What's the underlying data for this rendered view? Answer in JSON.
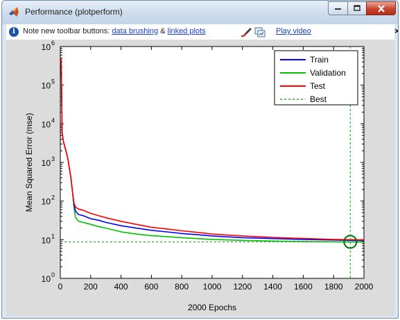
{
  "window": {
    "title": "Performance (plotperform)"
  },
  "infobar": {
    "prefix": "Note new toolbar buttons:",
    "link1": "data brushing",
    "amp": "&",
    "link2": "linked plots",
    "play_link": "Play video",
    "close_glyph": "×",
    "icons": [
      "info-icon",
      "brush-icon",
      "linked-plots-icon"
    ]
  },
  "chart_data": {
    "type": "line",
    "title": "",
    "xlabel": "2000 Epochs",
    "ylabel": "Mean Squared Error  (mse)",
    "xlim": [
      0,
      2000
    ],
    "ylim": [
      1,
      1000000
    ],
    "yscale": "log",
    "x_ticks": [
      0,
      200,
      400,
      600,
      800,
      1000,
      1200,
      1400,
      1600,
      1800,
      2000
    ],
    "y_ticks": [
      {
        "value": 1,
        "base": "10",
        "exp": "0"
      },
      {
        "value": 10,
        "base": "10",
        "exp": "1"
      },
      {
        "value": 100,
        "base": "10",
        "exp": "2"
      },
      {
        "value": 1000,
        "base": "10",
        "exp": "3"
      },
      {
        "value": 10000,
        "base": "10",
        "exp": "4"
      },
      {
        "value": 100000,
        "base": "10",
        "exp": "5"
      },
      {
        "value": 1000000,
        "base": "10",
        "exp": "6"
      }
    ],
    "grid": false,
    "legend_position": "top-right",
    "series": [
      {
        "name": "Train",
        "color": "#0000ff",
        "style": "solid",
        "x": [
          0,
          5,
          8,
          12,
          20,
          30,
          40,
          50,
          60,
          70,
          80,
          90,
          100,
          120,
          150,
          200,
          250,
          300,
          400,
          500,
          600,
          700,
          800,
          900,
          1000,
          1200,
          1400,
          1600,
          1800,
          2000
        ],
        "y": [
          500000,
          500000,
          100000,
          6000,
          3500,
          2500,
          1800,
          1200,
          700,
          400,
          180,
          80,
          55,
          45,
          42,
          35,
          32,
          28,
          23,
          20,
          17.5,
          16,
          14.5,
          13.5,
          12.5,
          11.3,
          10.7,
          10.2,
          9.8,
          9.5
        ]
      },
      {
        "name": "Validation",
        "color": "#00c000",
        "style": "solid",
        "x": [
          0,
          5,
          8,
          12,
          20,
          30,
          40,
          50,
          60,
          70,
          80,
          90,
          100,
          120,
          150,
          200,
          250,
          300,
          400,
          500,
          600,
          700,
          800,
          900,
          1000,
          1200,
          1400,
          1600,
          1800,
          2000
        ],
        "y": [
          500000,
          500000,
          100000,
          6000,
          3500,
          2500,
          1800,
          1200,
          700,
          400,
          180,
          70,
          38,
          30,
          28,
          25,
          22,
          20,
          16,
          14,
          12.8,
          12,
          11.3,
          10.7,
          10.2,
          9.6,
          9.2,
          9.0,
          8.8,
          8.7
        ]
      },
      {
        "name": "Test",
        "color": "#ff0000",
        "style": "solid",
        "x": [
          0,
          5,
          8,
          12,
          20,
          30,
          40,
          50,
          60,
          70,
          80,
          90,
          100,
          120,
          150,
          200,
          250,
          300,
          400,
          500,
          600,
          700,
          800,
          900,
          1000,
          1200,
          1400,
          1600,
          1800,
          2000
        ],
        "y": [
          500000,
          500000,
          100000,
          6000,
          3500,
          2500,
          1800,
          1200,
          700,
          400,
          180,
          90,
          70,
          62,
          58,
          48,
          42,
          37,
          30,
          25,
          21,
          19,
          17,
          15.5,
          14,
          12.5,
          11.5,
          10.8,
          10.2,
          9.9
        ]
      },
      {
        "name": "Best",
        "color": "#00a000",
        "style": "dashed",
        "best_epoch": 1910,
        "best_value": 8.8
      }
    ]
  }
}
